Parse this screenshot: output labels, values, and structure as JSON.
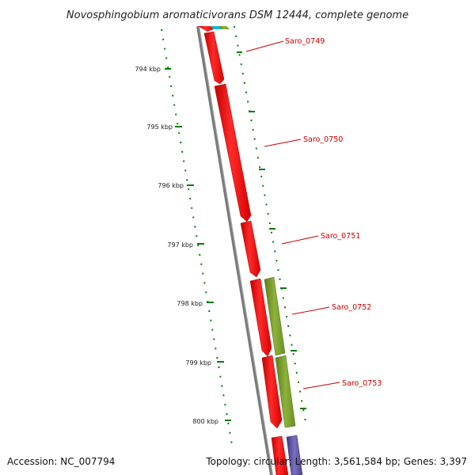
{
  "title": "Novosphingobium aromaticivorans DSM 12444, complete genome",
  "accession": "Accession: NC_007794",
  "summary": "Topology: circular; Length: 3,561,584 bp; Genes: 3,397",
  "ruler_labels": [
    "794 kbp",
    "795 kbp",
    "796 kbp",
    "797 kbp",
    "798 kbp",
    "799 kbp",
    "800 kbp"
  ],
  "gene_labels": [
    "Saro_0749",
    "Saro_0750",
    "Saro_0751",
    "Saro_0752",
    "Saro_0753"
  ],
  "colors": {
    "cds_red": "#ff0000",
    "olive_feature": "#6b8e23",
    "backbone_gray": "#808080",
    "tick_green": "#008000",
    "label_red": "#cc0000",
    "teal_feature": "#00bcd4",
    "purple_feature": "#5a4fa0"
  }
}
